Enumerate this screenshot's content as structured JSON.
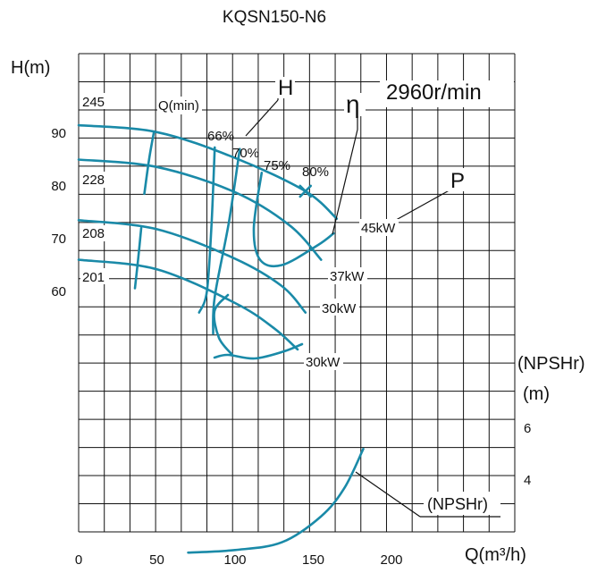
{
  "chart_data": {
    "type": "line",
    "title": "KQSN150-N6",
    "speed_label": "2960r/min",
    "xlabel": "Q(m³/h)",
    "x_ticks": [
      "0",
      "50",
      "100",
      "150",
      "200"
    ],
    "xlim": [
      0,
      225
    ],
    "ylabel": "H(m)",
    "y_ticks": [
      "90",
      "80",
      "70",
      "60"
    ],
    "y_tick_values": [
      90,
      80,
      70,
      60
    ],
    "ylim": [
      5,
      102
    ],
    "npsh_label": "(NPSHr)",
    "npsh_unit": "(m)",
    "npsh_ticks": [
      "6",
      "4"
    ],
    "npsh_tick_values": [
      6,
      4
    ],
    "curve_labels": {
      "head": "H",
      "efficiency": "η",
      "power": "P",
      "npsh": "(NPSHr)",
      "q_min": "Q(min)"
    },
    "impeller_diameters": [
      "245",
      "228",
      "208",
      "201"
    ],
    "head_curves": [
      {
        "name": "245",
        "points": [
          [
            0,
            91.5
          ],
          [
            50,
            90.2
          ],
          [
            100,
            85.3
          ],
          [
            145,
            79.0
          ],
          [
            165,
            73.8
          ]
        ]
      },
      {
        "name": "228",
        "points": [
          [
            0,
            85.0
          ],
          [
            50,
            83.6
          ],
          [
            100,
            78.8
          ],
          [
            135,
            72.5
          ],
          [
            155,
            66.0
          ]
        ]
      },
      {
        "name": "208",
        "points": [
          [
            0,
            73.5
          ],
          [
            50,
            71.8
          ],
          [
            100,
            66.2
          ],
          [
            130,
            61.0
          ],
          [
            145,
            56.0
          ]
        ]
      },
      {
        "name": "201",
        "points": [
          [
            0,
            66.0
          ],
          [
            50,
            64.2
          ],
          [
            100,
            57.8
          ],
          [
            125,
            53.0
          ],
          [
            140,
            49.0
          ]
        ]
      }
    ],
    "efficiency_labels": [
      "66%",
      "70%",
      "75%",
      "80%"
    ],
    "efficiency_contours": [
      {
        "name": "66%",
        "points": [
          [
            87,
            87.3
          ],
          [
            85,
            73.0
          ],
          [
            82,
            60.0
          ],
          [
            77,
            56.0
          ]
        ]
      },
      {
        "name": "70%",
        "points": [
          [
            103,
            87.0
          ],
          [
            96,
            73.0
          ],
          [
            87,
            59.0
          ],
          [
            86,
            52.0
          ]
        ]
      },
      {
        "name": "75%",
        "points": [
          [
            117,
            82.5
          ],
          [
            112,
            72.0
          ],
          [
            116,
            66.0
          ],
          [
            130,
            65.0
          ],
          [
            153,
            68.8
          ],
          [
            163,
            71.0
          ]
        ]
      },
      {
        "name": "q_min_245",
        "points": [
          [
            48,
            90.0
          ],
          [
            45,
            85.0
          ],
          [
            42,
            78.5
          ]
        ]
      },
      {
        "name": "q_min_208",
        "points": [
          [
            40,
            72.0
          ],
          [
            38,
            66.0
          ],
          [
            36,
            60.6
          ]
        ]
      }
    ],
    "npsh_curve": [
      [
        70,
        1.2
      ],
      [
        100,
        1.3
      ],
      [
        130,
        1.6
      ],
      [
        155,
        2.6
      ],
      [
        170,
        3.7
      ],
      [
        182,
        5.2
      ]
    ],
    "power_labels": [
      "45kW",
      "37kW",
      "30kW",
      "30kW"
    ],
    "bep_point": [
      145,
      79.0
    ]
  }
}
